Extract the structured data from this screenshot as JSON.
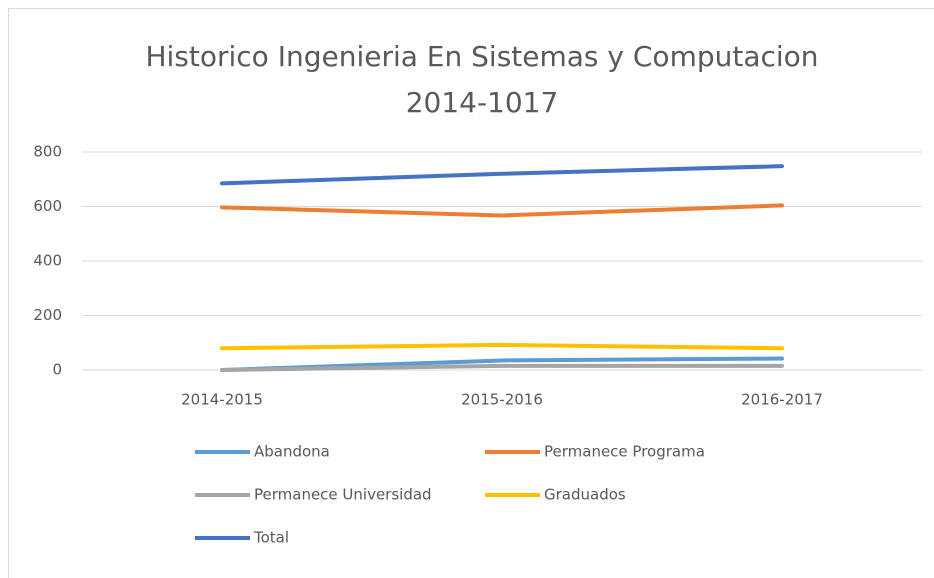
{
  "chart_data": {
    "type": "line",
    "title": "Historico Ingenieria En Sistemas y Computacion 2014-1017",
    "categories": [
      "2014-2015",
      "2015-2016",
      "2016-2017"
    ],
    "series": [
      {
        "name": "Abandona",
        "color": "#5b9bd5",
        "values": [
          0,
          35,
          42
        ]
      },
      {
        "name": "Permanece Programa",
        "color": "#ed7d31",
        "values": [
          597,
          567,
          604
        ]
      },
      {
        "name": "Permanece Universidad",
        "color": "#a5a5a5",
        "values": [
          0,
          15,
          15
        ]
      },
      {
        "name": "Graduados",
        "color": "#ffc000",
        "values": [
          80,
          92,
          80
        ]
      },
      {
        "name": "Total",
        "color": "#4472c4",
        "values": [
          685,
          720,
          748
        ]
      }
    ],
    "ylim": [
      0,
      800
    ],
    "yticks": [
      0,
      200,
      400,
      600,
      800
    ],
    "grid": true,
    "legend": "bottom"
  }
}
